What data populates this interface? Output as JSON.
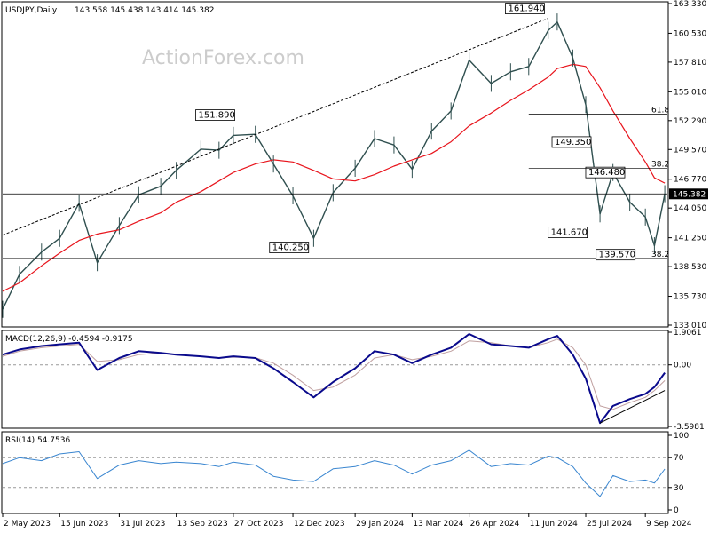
{
  "header": {
    "symbol": "USDJPY,Daily",
    "ohlc": "143.558 145.438 143.414 145.382"
  },
  "watermark": "ActionForex.com",
  "panels": {
    "macd": {
      "title": "MACD(12,26,9) -0.4594 -0.9175"
    },
    "rsi": {
      "title": "RSI(14) 54.7536"
    }
  },
  "price_axis_ticks": [
    "163.330",
    "160.530",
    "157.810",
    "155.010",
    "152.290",
    "149.570",
    "146.770",
    "144.050",
    "141.250",
    "138.530",
    "135.730",
    "133.010"
  ],
  "current_price_label": "145.382",
  "macd_axis_ticks": [
    "1.9061",
    "0.00",
    "-3.5981"
  ],
  "rsi_axis_ticks": [
    "100",
    "70",
    "30",
    "0"
  ],
  "x_axis_labels": [
    "2 May 2023",
    "15 Jun 2023",
    "31 Jul 2023",
    "13 Sep 2023",
    "27 Oct 2023",
    "12 Dec 2023",
    "29 Jan 2024",
    "13 Mar 2024",
    "26 Apr 2024",
    "11 Jun 2024",
    "25 Jul 2024",
    "9 Sep 2024"
  ],
  "annotations": {
    "swing_labels": [
      "161.940",
      "151.890",
      "140.250",
      "149.350",
      "146.480",
      "141.670",
      "139.570"
    ],
    "fib_labels": [
      "61.8",
      "38.2",
      "38.2"
    ]
  },
  "colors": {
    "price": "#2f4f4f",
    "ma": "#e8141c",
    "macd": "#0a0a8c",
    "signal": "#c0a0a0",
    "rsi": "#3a86d0",
    "grid": "#d8d8d8"
  },
  "chart_data": {
    "type": "line",
    "title": "USDJPY,Daily",
    "x": [
      "2023-05-02",
      "2023-05-15",
      "2023-06-01",
      "2023-06-15",
      "2023-06-30",
      "2023-07-14",
      "2023-07-31",
      "2023-08-15",
      "2023-09-01",
      "2023-09-13",
      "2023-10-02",
      "2023-10-16",
      "2023-10-27",
      "2023-11-13",
      "2023-11-27",
      "2023-12-12",
      "2023-12-28",
      "2024-01-12",
      "2024-01-29",
      "2024-02-13",
      "2024-02-28",
      "2024-03-13",
      "2024-03-28",
      "2024-04-12",
      "2024-04-26",
      "2024-05-13",
      "2024-05-28",
      "2024-06-11",
      "2024-06-26",
      "2024-07-03",
      "2024-07-15",
      "2024-07-25",
      "2024-08-05",
      "2024-08-15",
      "2024-08-28",
      "2024-09-09",
      "2024-09-16",
      "2024-09-24"
    ],
    "series": [
      {
        "name": "USDJPY",
        "values": [
          134.5,
          137.8,
          139.9,
          141.2,
          144.5,
          138.9,
          142.4,
          145.3,
          146.1,
          147.6,
          149.6,
          149.5,
          150.9,
          151.0,
          148.2,
          145.2,
          141.2,
          145.5,
          147.8,
          150.6,
          150.0,
          147.7,
          151.3,
          153.2,
          158.0,
          155.8,
          156.9,
          157.4,
          160.8,
          161.6,
          158.2,
          153.8,
          143.5,
          147.4,
          144.6,
          143.2,
          140.5,
          145.4
        ]
      },
      {
        "name": "",
        "values": [
          136.2,
          137.0,
          138.6,
          139.8,
          141.0,
          141.6,
          142.0,
          142.8,
          143.6,
          144.6,
          145.6,
          146.6,
          147.4,
          148.2,
          148.6,
          148.4,
          147.6,
          146.8,
          146.6,
          147.2,
          148.0,
          148.6,
          149.2,
          150.3,
          151.8,
          153.0,
          154.2,
          155.2,
          156.4,
          157.2,
          157.6,
          157.4,
          155.4,
          153.2,
          150.6,
          148.4,
          146.9,
          146.4
        ]
      }
    ],
    "macd": {
      "title": "MACD(12,26,9) -0.4594 -0.9175",
      "macd": [
        0.6,
        0.9,
        1.1,
        1.2,
        1.3,
        -0.3,
        0.4,
        0.8,
        0.7,
        0.6,
        0.5,
        0.4,
        0.5,
        0.4,
        -0.2,
        -1.0,
        -1.9,
        -1.0,
        -0.2,
        0.8,
        0.6,
        0.1,
        0.6,
        1.0,
        1.8,
        1.2,
        1.1,
        1.0,
        1.5,
        1.7,
        0.6,
        -0.8,
        -3.4,
        -2.4,
        -2.0,
        -1.7,
        -1.3,
        -0.46
      ],
      "signal": [
        0.5,
        0.8,
        1.0,
        1.1,
        1.2,
        0.2,
        0.3,
        0.6,
        0.7,
        0.6,
        0.5,
        0.4,
        0.45,
        0.42,
        0.1,
        -0.6,
        -1.5,
        -1.3,
        -0.6,
        0.4,
        0.6,
        0.3,
        0.5,
        0.8,
        1.4,
        1.3,
        1.1,
        1.0,
        1.3,
        1.5,
        1.0,
        0.0,
        -2.4,
        -2.6,
        -2.2,
        -1.9,
        -1.5,
        -0.92
      ],
      "ylim": [
        -3.5981,
        1.9061
      ]
    },
    "rsi": {
      "title": "RSI(14) 54.7536",
      "values": [
        62,
        70,
        66,
        75,
        78,
        42,
        60,
        66,
        62,
        64,
        62,
        58,
        64,
        60,
        45,
        40,
        38,
        55,
        58,
        66,
        60,
        48,
        60,
        66,
        80,
        58,
        62,
        60,
        72,
        70,
        58,
        36,
        18,
        46,
        38,
        40,
        36,
        54.75
      ],
      "levels": [
        70,
        30
      ],
      "ylim": [
        0,
        100
      ]
    },
    "ylim": [
      133.01,
      163.33
    ],
    "grid": false,
    "lines": {
      "trend_upper": [
        [
          "2023-05-02",
          141.5
        ],
        [
          "2024-06-26",
          161.94
        ]
      ],
      "trend_macd_support": [
        [
          "2024-08-05",
          -3.4
        ],
        [
          "2024-09-24",
          -1.5
        ]
      ],
      "horizontal": [
        145.382,
        139.3
      ]
    }
  }
}
